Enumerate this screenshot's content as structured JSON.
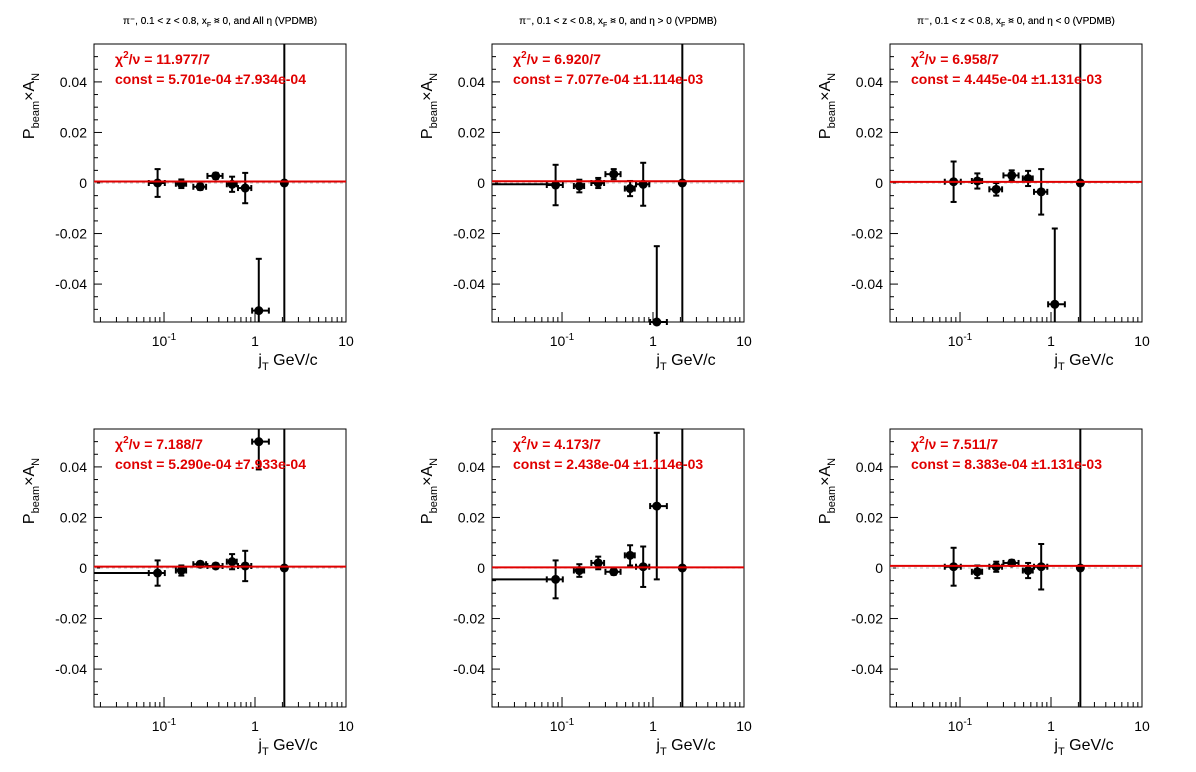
{
  "chart_data": [
    {
      "type": "scatter",
      "title": "π⁻, 0.1 < z < 0.8, x_F > 0, and All η (VPDMB)",
      "xlabel": "j_T GeV/c",
      "ylabel": "P_beam × A_N",
      "xscale": "log",
      "xlim": [
        0.017,
        10
      ],
      "ylim": [
        -0.055,
        0.055
      ],
      "xticks": [
        "10⁻¹",
        "1",
        "10"
      ],
      "yticks": [
        "0.04",
        "0.02",
        "0",
        "-0.02",
        "-0.04"
      ],
      "chi2": "11.977/7",
      "const": "5.701e-04",
      "const_err": "7.934e-04",
      "fit_value": 0.00057,
      "points": [
        {
          "x": 0.085,
          "y": 0.0,
          "xerr": [
            0.017,
            0.017
          ],
          "yerr": 0.0055
        },
        {
          "x": 0.155,
          "y": -0.0003,
          "xerr": [
            0.02,
            0.02
          ],
          "yerr": 0.0017
        },
        {
          "x": 0.25,
          "y": -0.0015,
          "xerr": [
            0.04,
            0.04
          ],
          "yerr": 0.0012
        },
        {
          "x": 0.37,
          "y": 0.0028,
          "xerr": [
            0.07,
            0.07
          ],
          "yerr": 0.0012
        },
        {
          "x": 0.56,
          "y": -0.0005,
          "xerr": [
            0.07,
            0.07
          ],
          "yerr": 0.003
        },
        {
          "x": 0.78,
          "y": -0.002,
          "xerr": [
            0.13,
            0.13
          ],
          "yerr": 0.006
        },
        {
          "x": 1.1,
          "y": -0.0505,
          "xerr": [
            0.17,
            0.32
          ],
          "yerr": 0.0205
        },
        {
          "x": 2.1,
          "y": 0.0,
          "xerr": [
            0,
            0
          ],
          "yerr": 0.06
        }
      ]
    },
    {
      "type": "scatter",
      "title": "π⁻, 0.1 < z < 0.8, x_F > 0, and η > 0 (VPDMB)",
      "xlabel": "j_T GeV/c",
      "ylabel": "P_beam × A_N",
      "xscale": "log",
      "xlim": [
        0.017,
        10
      ],
      "ylim": [
        -0.055,
        0.055
      ],
      "xticks": [
        "10⁻¹",
        "1",
        "10"
      ],
      "yticks": [
        "0.04",
        "0.02",
        "0",
        "-0.02",
        "-0.04"
      ],
      "chi2": "6.920/7",
      "const": "7.077e-04",
      "const_err": "1.114e-03",
      "fit_value": 0.00071,
      "points": [
        {
          "x": 0.017,
          "y": -0.0005,
          "xerr": [
            0,
            0.068
          ],
          "yerr": 0
        },
        {
          "x": 0.085,
          "y": -0.0008,
          "xerr": [
            0.017,
            0.017
          ],
          "yerr": 0.008
        },
        {
          "x": 0.155,
          "y": -0.0012,
          "xerr": [
            0.02,
            0.02
          ],
          "yerr": 0.0025
        },
        {
          "x": 0.25,
          "y": 0.0,
          "xerr": [
            0.04,
            0.04
          ],
          "yerr": 0.002
        },
        {
          "x": 0.37,
          "y": 0.0035,
          "xerr": [
            0.07,
            0.07
          ],
          "yerr": 0.002
        },
        {
          "x": 0.56,
          "y": -0.0022,
          "xerr": [
            0.07,
            0.07
          ],
          "yerr": 0.003
        },
        {
          "x": 0.78,
          "y": -0.0005,
          "xerr": [
            0.13,
            0.13
          ],
          "yerr": 0.0085
        },
        {
          "x": 1.1,
          "y": -0.055,
          "xerr": [
            0.17,
            0.32
          ],
          "yerr": 0.03
        },
        {
          "x": 2.1,
          "y": 0.0,
          "xerr": [
            0,
            0
          ],
          "yerr": 0.06
        }
      ]
    },
    {
      "type": "scatter",
      "title": "π⁻, 0.1 < z < 0.8, x_F > 0, and η < 0 (VPDMB)",
      "xlabel": "j_T GeV/c",
      "ylabel": "P_beam × A_N",
      "xscale": "log",
      "xlim": [
        0.017,
        10
      ],
      "ylim": [
        -0.055,
        0.055
      ],
      "xticks": [
        "10⁻¹",
        "1",
        "10"
      ],
      "yticks": [
        "0.04",
        "0.02",
        "0",
        "-0.02",
        "-0.04"
      ],
      "chi2": "6.958/7",
      "const": "4.445e-04",
      "const_err": "1.131e-03",
      "fit_value": 0.00044,
      "points": [
        {
          "x": 0.085,
          "y": 0.0005,
          "xerr": [
            0.017,
            0.017
          ],
          "yerr": 0.008
        },
        {
          "x": 0.155,
          "y": 0.0008,
          "xerr": [
            0.02,
            0.02
          ],
          "yerr": 0.003
        },
        {
          "x": 0.25,
          "y": -0.0025,
          "xerr": [
            0.04,
            0.04
          ],
          "yerr": 0.0025
        },
        {
          "x": 0.37,
          "y": 0.003,
          "xerr": [
            0.07,
            0.07
          ],
          "yerr": 0.002
        },
        {
          "x": 0.56,
          "y": 0.0018,
          "xerr": [
            0.07,
            0.07
          ],
          "yerr": 0.003
        },
        {
          "x": 0.78,
          "y": -0.0035,
          "xerr": [
            0.13,
            0.13
          ],
          "yerr": 0.009
        },
        {
          "x": 1.1,
          "y": -0.048,
          "xerr": [
            0.17,
            0.32
          ],
          "yerr": 0.03
        },
        {
          "x": 2.1,
          "y": 0.0,
          "xerr": [
            0,
            0
          ],
          "yerr": 0.06
        }
      ]
    },
    {
      "type": "scatter",
      "title": "π⁻, 0.1 < z < 0.8, x_F < 0, and All η (VPDMB)",
      "xlabel": "j_T GeV/c",
      "ylabel": "P_beam × A_N",
      "xscale": "log",
      "xlim": [
        0.017,
        10
      ],
      "ylim": [
        -0.055,
        0.055
      ],
      "xticks": [
        "10⁻¹",
        "1",
        "10"
      ],
      "yticks": [
        "0.04",
        "0.02",
        "0",
        "-0.02",
        "-0.04"
      ],
      "chi2": "7.188/7",
      "const": "5.290e-04",
      "const_err": "7.933e-04",
      "fit_value": 0.00053,
      "points": [
        {
          "x": 0.017,
          "y": -0.002,
          "xerr": [
            0,
            0.068
          ],
          "yerr": 0
        },
        {
          "x": 0.085,
          "y": -0.002,
          "xerr": [
            0.017,
            0.017
          ],
          "yerr": 0.005
        },
        {
          "x": 0.155,
          "y": -0.001,
          "xerr": [
            0.02,
            0.02
          ],
          "yerr": 0.002
        },
        {
          "x": 0.25,
          "y": 0.0015,
          "xerr": [
            0.04,
            0.04
          ],
          "yerr": 0.001
        },
        {
          "x": 0.37,
          "y": 0.0008,
          "xerr": [
            0.07,
            0.07
          ],
          "yerr": 0.001
        },
        {
          "x": 0.56,
          "y": 0.0025,
          "xerr": [
            0.07,
            0.07
          ],
          "yerr": 0.003
        },
        {
          "x": 0.78,
          "y": 0.0008,
          "xerr": [
            0.13,
            0.13
          ],
          "yerr": 0.006
        },
        {
          "x": 1.1,
          "y": 0.05,
          "xerr": [
            0.17,
            0.32
          ],
          "yerr": 0.011
        },
        {
          "x": 2.1,
          "y": 0.0,
          "xerr": [
            0,
            0
          ],
          "yerr": 0.06
        }
      ]
    },
    {
      "type": "scatter",
      "title": "π⁻, 0.1 < z < 0.8, x_F < 0, and η > 0 (VPDMB)",
      "xlabel": "j_T GeV/c",
      "ylabel": "P_beam × A_N",
      "xscale": "log",
      "xlim": [
        0.017,
        10
      ],
      "ylim": [
        -0.055,
        0.055
      ],
      "xticks": [
        "10⁻¹",
        "1",
        "10"
      ],
      "yticks": [
        "0.04",
        "0.02",
        "0",
        "-0.02",
        "-0.04"
      ],
      "chi2": "4.173/7",
      "const": "2.438e-04",
      "const_err": "1.114e-03",
      "fit_value": 0.00024,
      "points": [
        {
          "x": 0.017,
          "y": -0.0045,
          "xerr": [
            0,
            0.068
          ],
          "yerr": 0
        },
        {
          "x": 0.085,
          "y": -0.0045,
          "xerr": [
            0.017,
            0.017
          ],
          "yerr": 0.0075
        },
        {
          "x": 0.155,
          "y": -0.001,
          "xerr": [
            0.02,
            0.02
          ],
          "yerr": 0.0025
        },
        {
          "x": 0.25,
          "y": 0.002,
          "xerr": [
            0.04,
            0.04
          ],
          "yerr": 0.0025
        },
        {
          "x": 0.37,
          "y": -0.0015,
          "xerr": [
            0.07,
            0.07
          ],
          "yerr": 0.0012
        },
        {
          "x": 0.56,
          "y": 0.005,
          "xerr": [
            0.07,
            0.07
          ],
          "yerr": 0.004
        },
        {
          "x": 0.78,
          "y": 0.0005,
          "xerr": [
            0.13,
            0.13
          ],
          "yerr": 0.008
        },
        {
          "x": 1.1,
          "y": 0.0245,
          "xerr": [
            0.17,
            0.32
          ],
          "yerr": 0.029
        },
        {
          "x": 2.1,
          "y": 0.0,
          "xerr": [
            0,
            0
          ],
          "yerr": 0.06
        }
      ]
    },
    {
      "type": "scatter",
      "title": "π⁻, 0.1 < z < 0.8, x_F < 0, and η < 0 (VPDMB)",
      "xlabel": "j_T GeV/c",
      "ylabel": "P_beam × A_N",
      "xscale": "log",
      "xlim": [
        0.017,
        10
      ],
      "ylim": [
        -0.055,
        0.055
      ],
      "xticks": [
        "10⁻¹",
        "1",
        "10"
      ],
      "yticks": [
        "0.04",
        "0.02",
        "0",
        "-0.02",
        "-0.04"
      ],
      "chi2": "7.511/7",
      "const": "8.383e-04",
      "const_err": "1.131e-03",
      "fit_value": 0.00084,
      "points": [
        {
          "x": 0.085,
          "y": 0.0005,
          "xerr": [
            0.017,
            0.017
          ],
          "yerr": 0.0075
        },
        {
          "x": 0.155,
          "y": -0.0015,
          "xerr": [
            0.02,
            0.02
          ],
          "yerr": 0.0025
        },
        {
          "x": 0.25,
          "y": 0.0005,
          "xerr": [
            0.04,
            0.04
          ],
          "yerr": 0.002
        },
        {
          "x": 0.37,
          "y": 0.002,
          "xerr": [
            0.07,
            0.07
          ],
          "yerr": 0.0012
        },
        {
          "x": 0.56,
          "y": -0.001,
          "xerr": [
            0.07,
            0.07
          ],
          "yerr": 0.003
        },
        {
          "x": 0.78,
          "y": 0.0005,
          "xerr": [
            0.13,
            0.13
          ],
          "yerr": 0.009
        },
        {
          "x": 2.1,
          "y": 0.0,
          "xerr": [
            0,
            0
          ],
          "yerr": 0.06
        }
      ]
    }
  ]
}
